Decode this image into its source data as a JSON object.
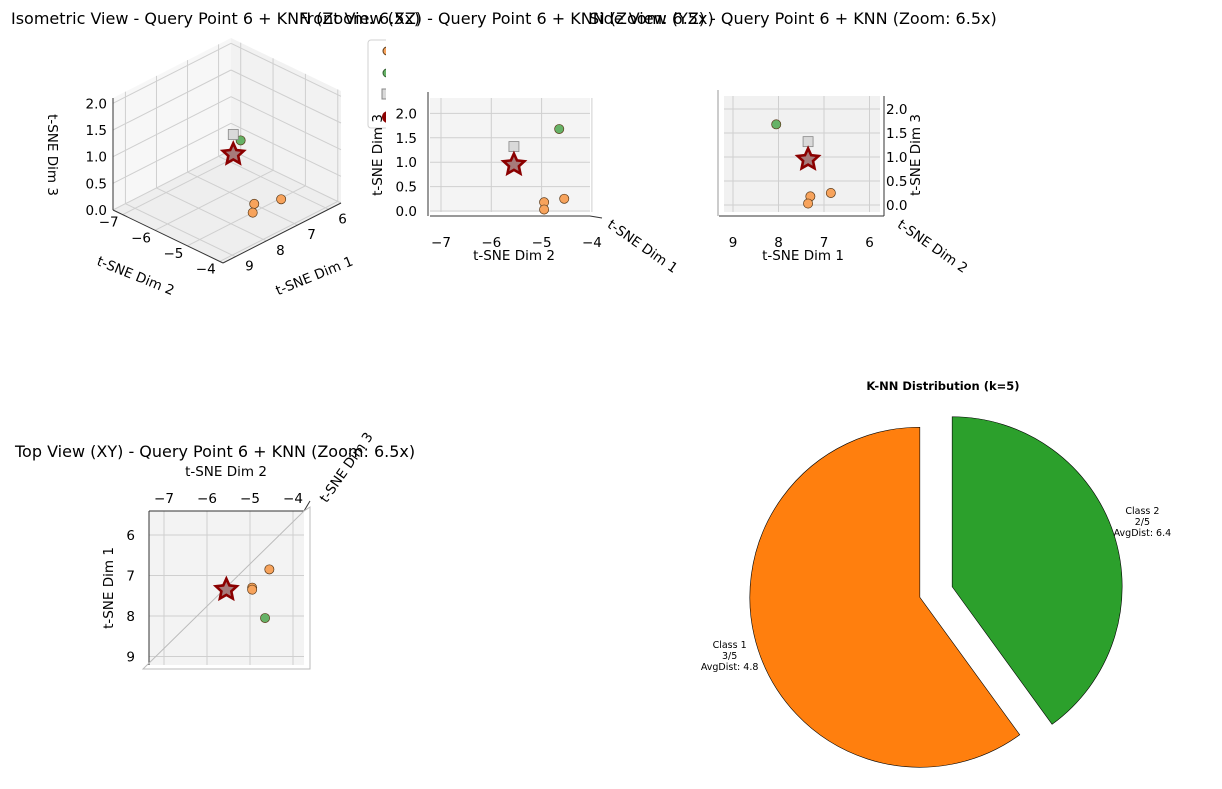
{
  "colors": {
    "class1": "#ff7f0e",
    "class2": "#2ca02c",
    "point_class1": "#f7a35c",
    "point_class2": "#66b266",
    "query_edge": "#8b0000",
    "query_fill": "#a67a7a",
    "centroid": "#d9d9d9"
  },
  "panels": {
    "iso": {
      "title": "Isometric View - Query Point 6 + KNN (Zoom: 6.5x)",
      "xlabel": "t-SNE Dim 1",
      "ylabel": "t-SNE Dim 2",
      "zlabel": "t-SNE Dim 3",
      "x_ticks": [
        "6",
        "7",
        "8",
        "9"
      ],
      "y_ticks": [
        "−7",
        "−6",
        "−5",
        "−4"
      ],
      "z_ticks": [
        "0.0",
        "0.5",
        "1.0",
        "1.5",
        "2.0"
      ]
    },
    "xz": {
      "title": "Front View (XZ) - Query Point 6 + KNN (Zoom: 6.5x)",
      "xlabel": "t-SNE Dim 2",
      "zlabel": "t-SNE Dim 3",
      "depth_label": "t-SNE Dim 1",
      "x_ticks": [
        "−7",
        "−6",
        "−5",
        "−4"
      ],
      "z_ticks": [
        "0.0",
        "0.5",
        "1.0",
        "1.5",
        "2.0"
      ]
    },
    "yz": {
      "title": "Side View (YZ) - Query Point 6 + KNN (Zoom: 6.5x)",
      "xlabel": "t-SNE Dim 1",
      "zlabel": "t-SNE Dim 3",
      "depth_label": "t-SNE Dim 2",
      "x_ticks": [
        "9",
        "8",
        "7",
        "6"
      ],
      "z_ticks": [
        "0.0",
        "0.5",
        "1.0",
        "1.5",
        "2.0"
      ]
    },
    "xy": {
      "title": "Top View (XY) - Query Point 6 + KNN (Zoom: 6.5x)",
      "xlabel": "t-SNE Dim 2",
      "ylabel": "t-SNE Dim 1",
      "depth_label": "t-SNE Dim 3",
      "x_ticks": [
        "−7",
        "−6",
        "−5",
        "−4"
      ],
      "y_ticks": [
        "6",
        "7",
        "8",
        "9"
      ]
    }
  },
  "chart_data": [
    {
      "type": "scatter",
      "dimensions": 3,
      "axes": [
        "t-SNE Dim 1",
        "t-SNE Dim 2",
        "t-SNE Dim 3"
      ],
      "xlim": [
        5.6,
        9.4
      ],
      "ylim": [
        -7.3,
        -3.9
      ],
      "zlim": [
        0.0,
        2.1
      ],
      "query_point": {
        "x": 7.35,
        "y": -5.55,
        "z": 0.95
      },
      "centroid": {
        "x": 7.35,
        "y": -5.55,
        "z": 1.32
      },
      "neighbors": [
        {
          "class": 1,
          "x": 6.85,
          "y": -4.55,
          "z": 0.25
        },
        {
          "class": 1,
          "x": 7.3,
          "y": -4.95,
          "z": 0.18
        },
        {
          "class": 1,
          "x": 7.35,
          "y": -4.95,
          "z": 0.03
        },
        {
          "class": 2,
          "x": 8.05,
          "y": -4.65,
          "z": 1.68
        }
      ]
    },
    {
      "type": "pie",
      "title": "K-NN Distribution (k=5)",
      "slices": [
        {
          "label": "Class 1",
          "count": "3/5",
          "avgdist": "AvgDist: 4.8",
          "value": 3
        },
        {
          "label": "Class 2",
          "count": "2/5",
          "avgdist": "AvgDist: 6.4",
          "value": 2
        }
      ]
    }
  ]
}
